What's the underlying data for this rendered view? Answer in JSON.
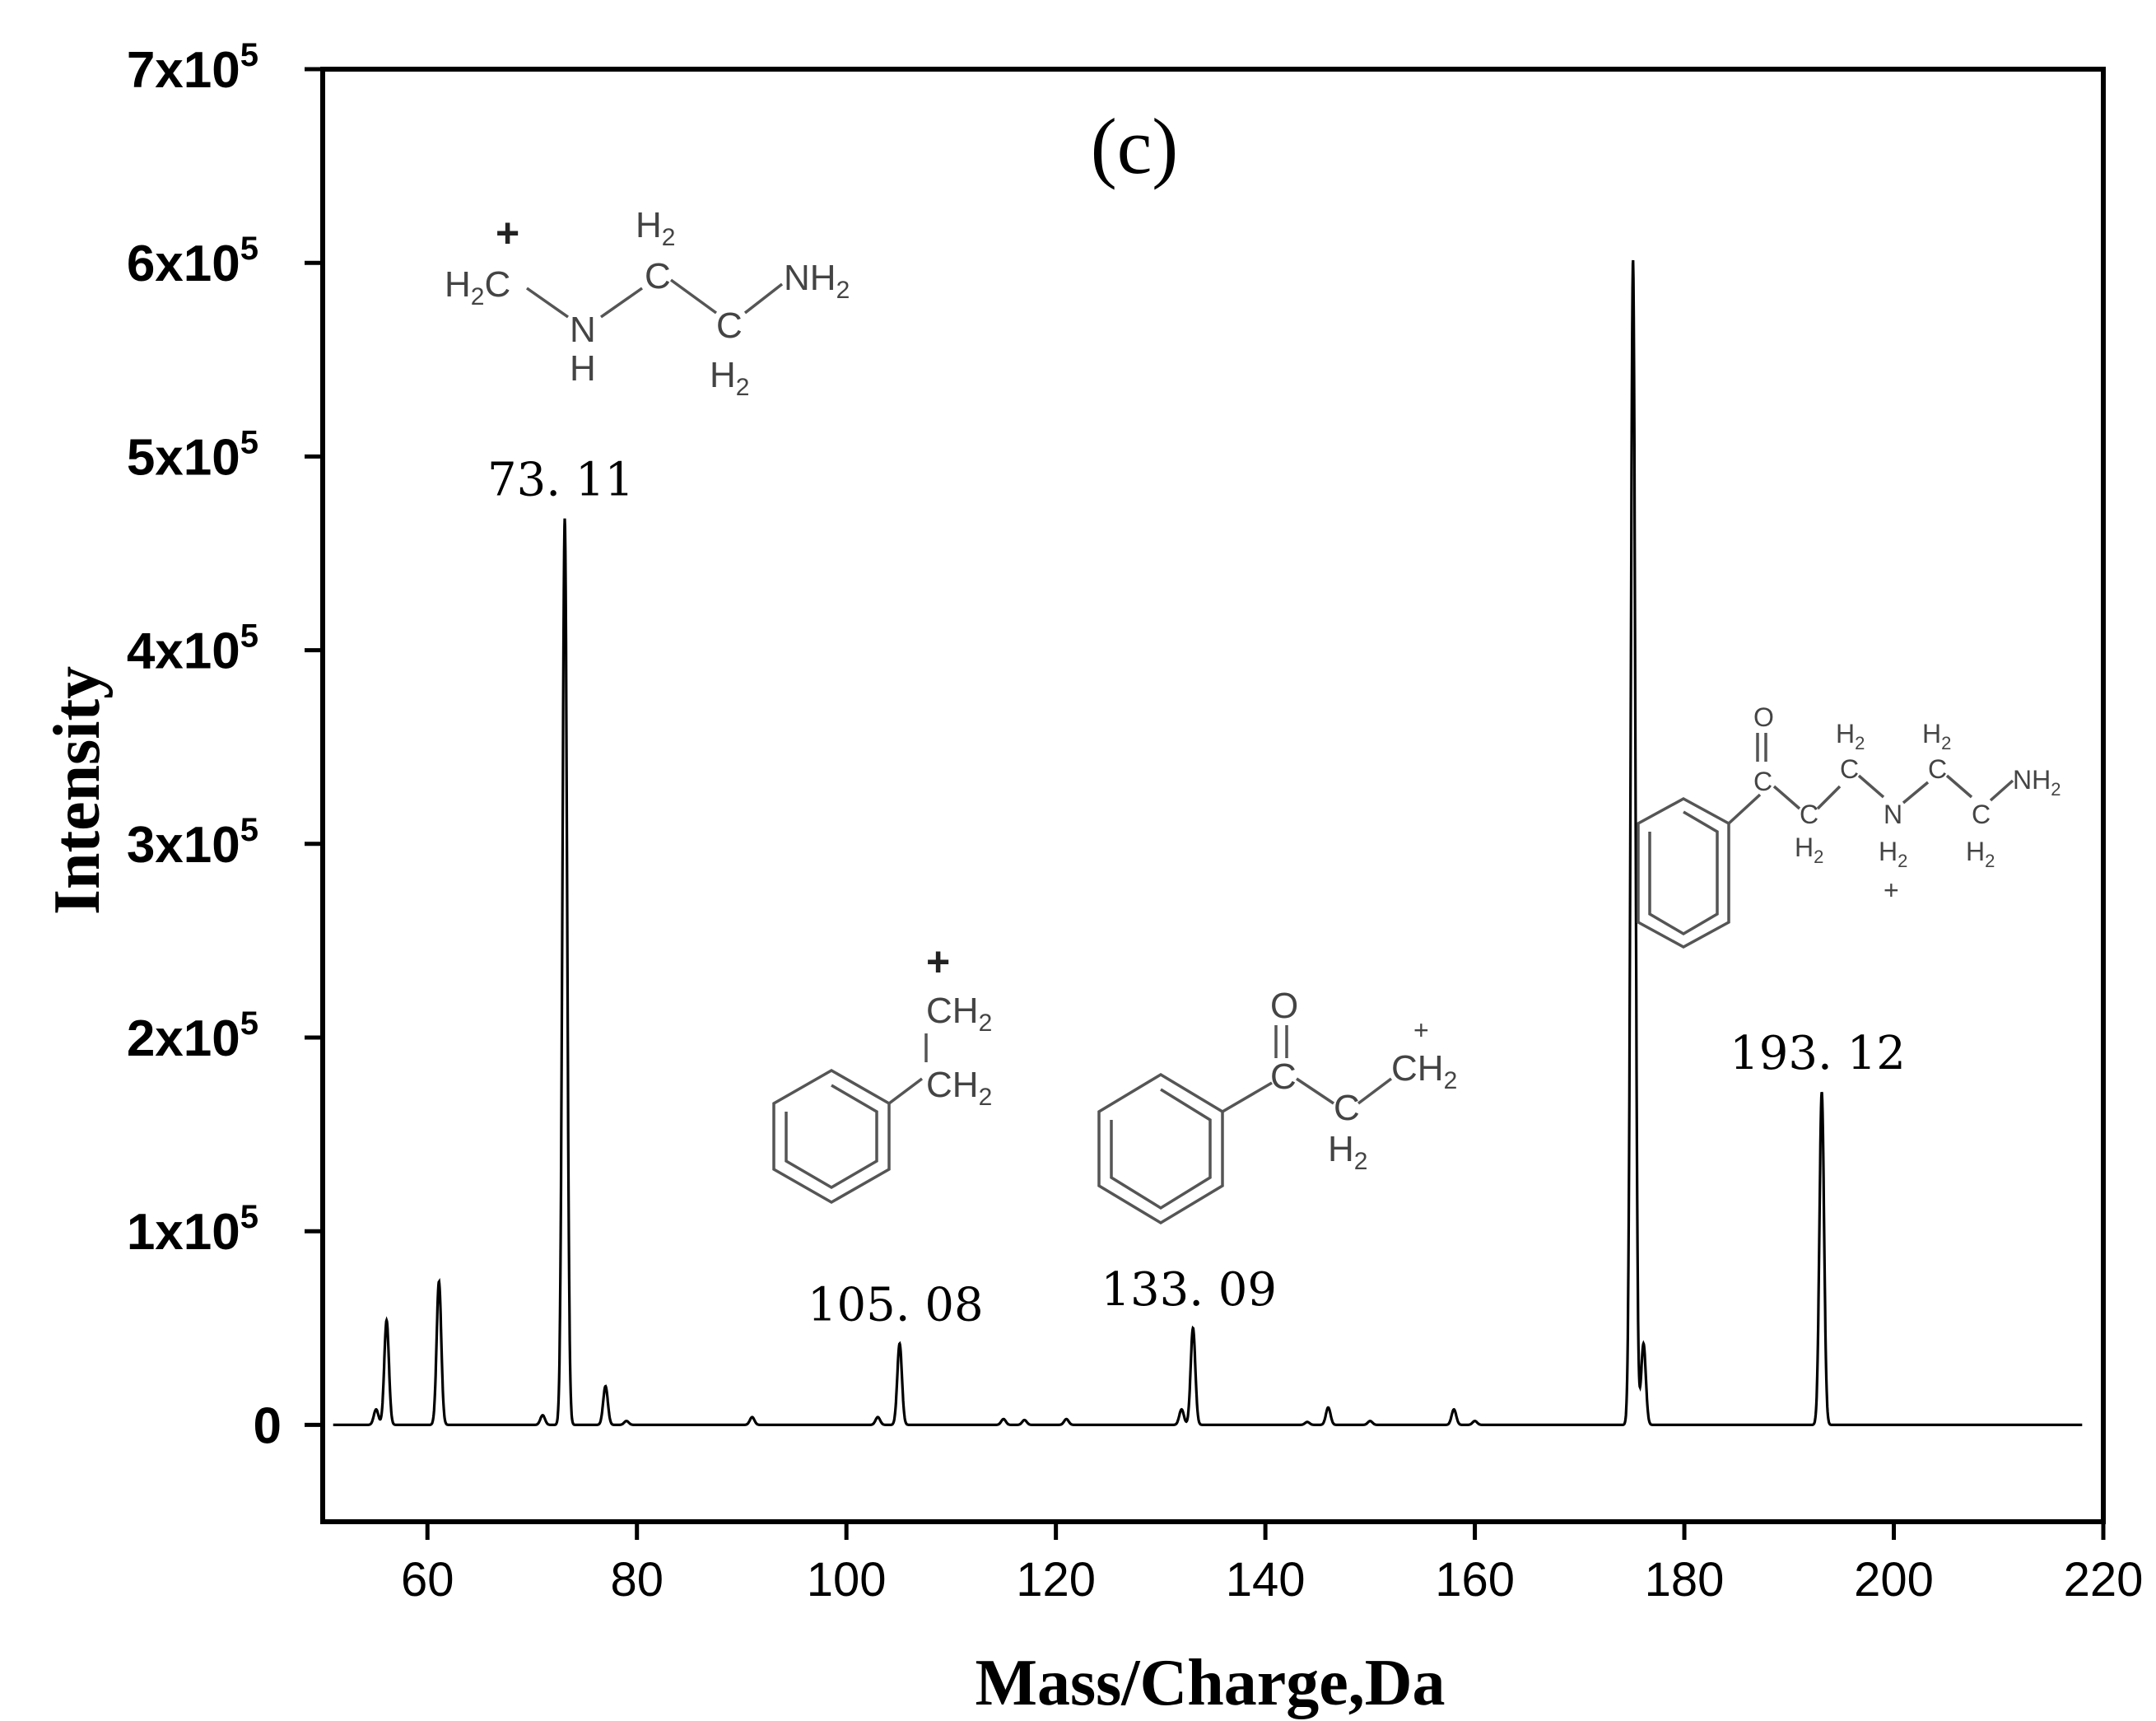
{
  "chart_data": {
    "type": "line",
    "title": "(c)",
    "xlabel": "Mass/Charge,Da",
    "ylabel": "Intensity",
    "xlim": [
      50,
      220
    ],
    "ylim": [
      -50000,
      700000
    ],
    "x_ticks": [
      60,
      80,
      100,
      120,
      140,
      160,
      180,
      200,
      220
    ],
    "y_ticks": [
      {
        "value": 0,
        "label": "0"
      },
      {
        "value": 100000,
        "label": "1x10",
        "exp": "5"
      },
      {
        "value": 200000,
        "label": "2x10",
        "exp": "5"
      },
      {
        "value": 300000,
        "label": "3x10",
        "exp": "5"
      },
      {
        "value": 400000,
        "label": "4x10",
        "exp": "5"
      },
      {
        "value": 500000,
        "label": "5x10",
        "exp": "5"
      },
      {
        "value": 600000,
        "label": "6x10",
        "exp": "5"
      },
      {
        "value": 700000,
        "label": "7x10",
        "exp": "5"
      }
    ],
    "peaks": [
      {
        "x": 55.1,
        "y": 8000
      },
      {
        "x": 56.1,
        "y": 54000
      },
      {
        "x": 61.1,
        "y": 74000
      },
      {
        "x": 71.0,
        "y": 5000
      },
      {
        "x": 73.11,
        "y": 468000
      },
      {
        "x": 77.0,
        "y": 20000
      },
      {
        "x": 79.0,
        "y": 2000
      },
      {
        "x": 91.0,
        "y": 4000
      },
      {
        "x": 103.0,
        "y": 4000
      },
      {
        "x": 105.08,
        "y": 42000
      },
      {
        "x": 115.0,
        "y": 3000
      },
      {
        "x": 117.0,
        "y": 2500
      },
      {
        "x": 121.0,
        "y": 3000
      },
      {
        "x": 132.0,
        "y": 8000
      },
      {
        "x": 133.09,
        "y": 50000
      },
      {
        "x": 144.0,
        "y": 1500
      },
      {
        "x": 146.0,
        "y": 9000
      },
      {
        "x": 150.0,
        "y": 2000
      },
      {
        "x": 158.0,
        "y": 8000
      },
      {
        "x": 160.0,
        "y": 2000
      },
      {
        "x": 175.1,
        "y": 602000
      },
      {
        "x": 176.1,
        "y": 42000
      },
      {
        "x": 193.12,
        "y": 172000
      }
    ],
    "annotations": [
      {
        "text": "73. 11",
        "x": 73.11
      },
      {
        "text": "105. 08",
        "x": 105.08
      },
      {
        "text": "133. 09",
        "x": 133.09
      },
      {
        "text": "193. 12",
        "x": 193.12
      }
    ],
    "legend": "none",
    "grid": false
  },
  "structures": {
    "s73": {
      "charge": "+",
      "h2c_H": "H",
      "h2c_sub": "2",
      "h2c_C": "C",
      "n": "N",
      "nh": "H",
      "c1_H": "H",
      "c1_sub": "2",
      "c1_C": "C",
      "c2_C": "C",
      "c2_H": "H",
      "c2_sub": "2",
      "nh2_N": "NH",
      "nh2_sub": "2"
    },
    "s105": {
      "charge": "+",
      "ch2a_C": "CH",
      "ch2a_sub": "2",
      "ch2b_C": "CH",
      "ch2b_sub": "2"
    },
    "s133": {
      "o": "O",
      "c1": "C",
      "c2": "C",
      "c2_H": "H",
      "c2_sub": "2",
      "ch2_C": "CH",
      "ch2_sub": "2",
      "charge": "+"
    },
    "s193": {
      "o": "O",
      "c1": "C",
      "c2": "C",
      "c2_H": "H",
      "c2_sub": "2",
      "c3_H": "H",
      "c3_sub": "2",
      "c3": "C",
      "n": "N",
      "n_H": "H",
      "n_sub": "2",
      "charge": "+",
      "c4_H": "H",
      "c4_sub": "2",
      "c4": "C",
      "c5": "C",
      "c5_H": "H",
      "c5_sub": "2",
      "nh2": "NH",
      "nh2_sub": "2"
    }
  }
}
